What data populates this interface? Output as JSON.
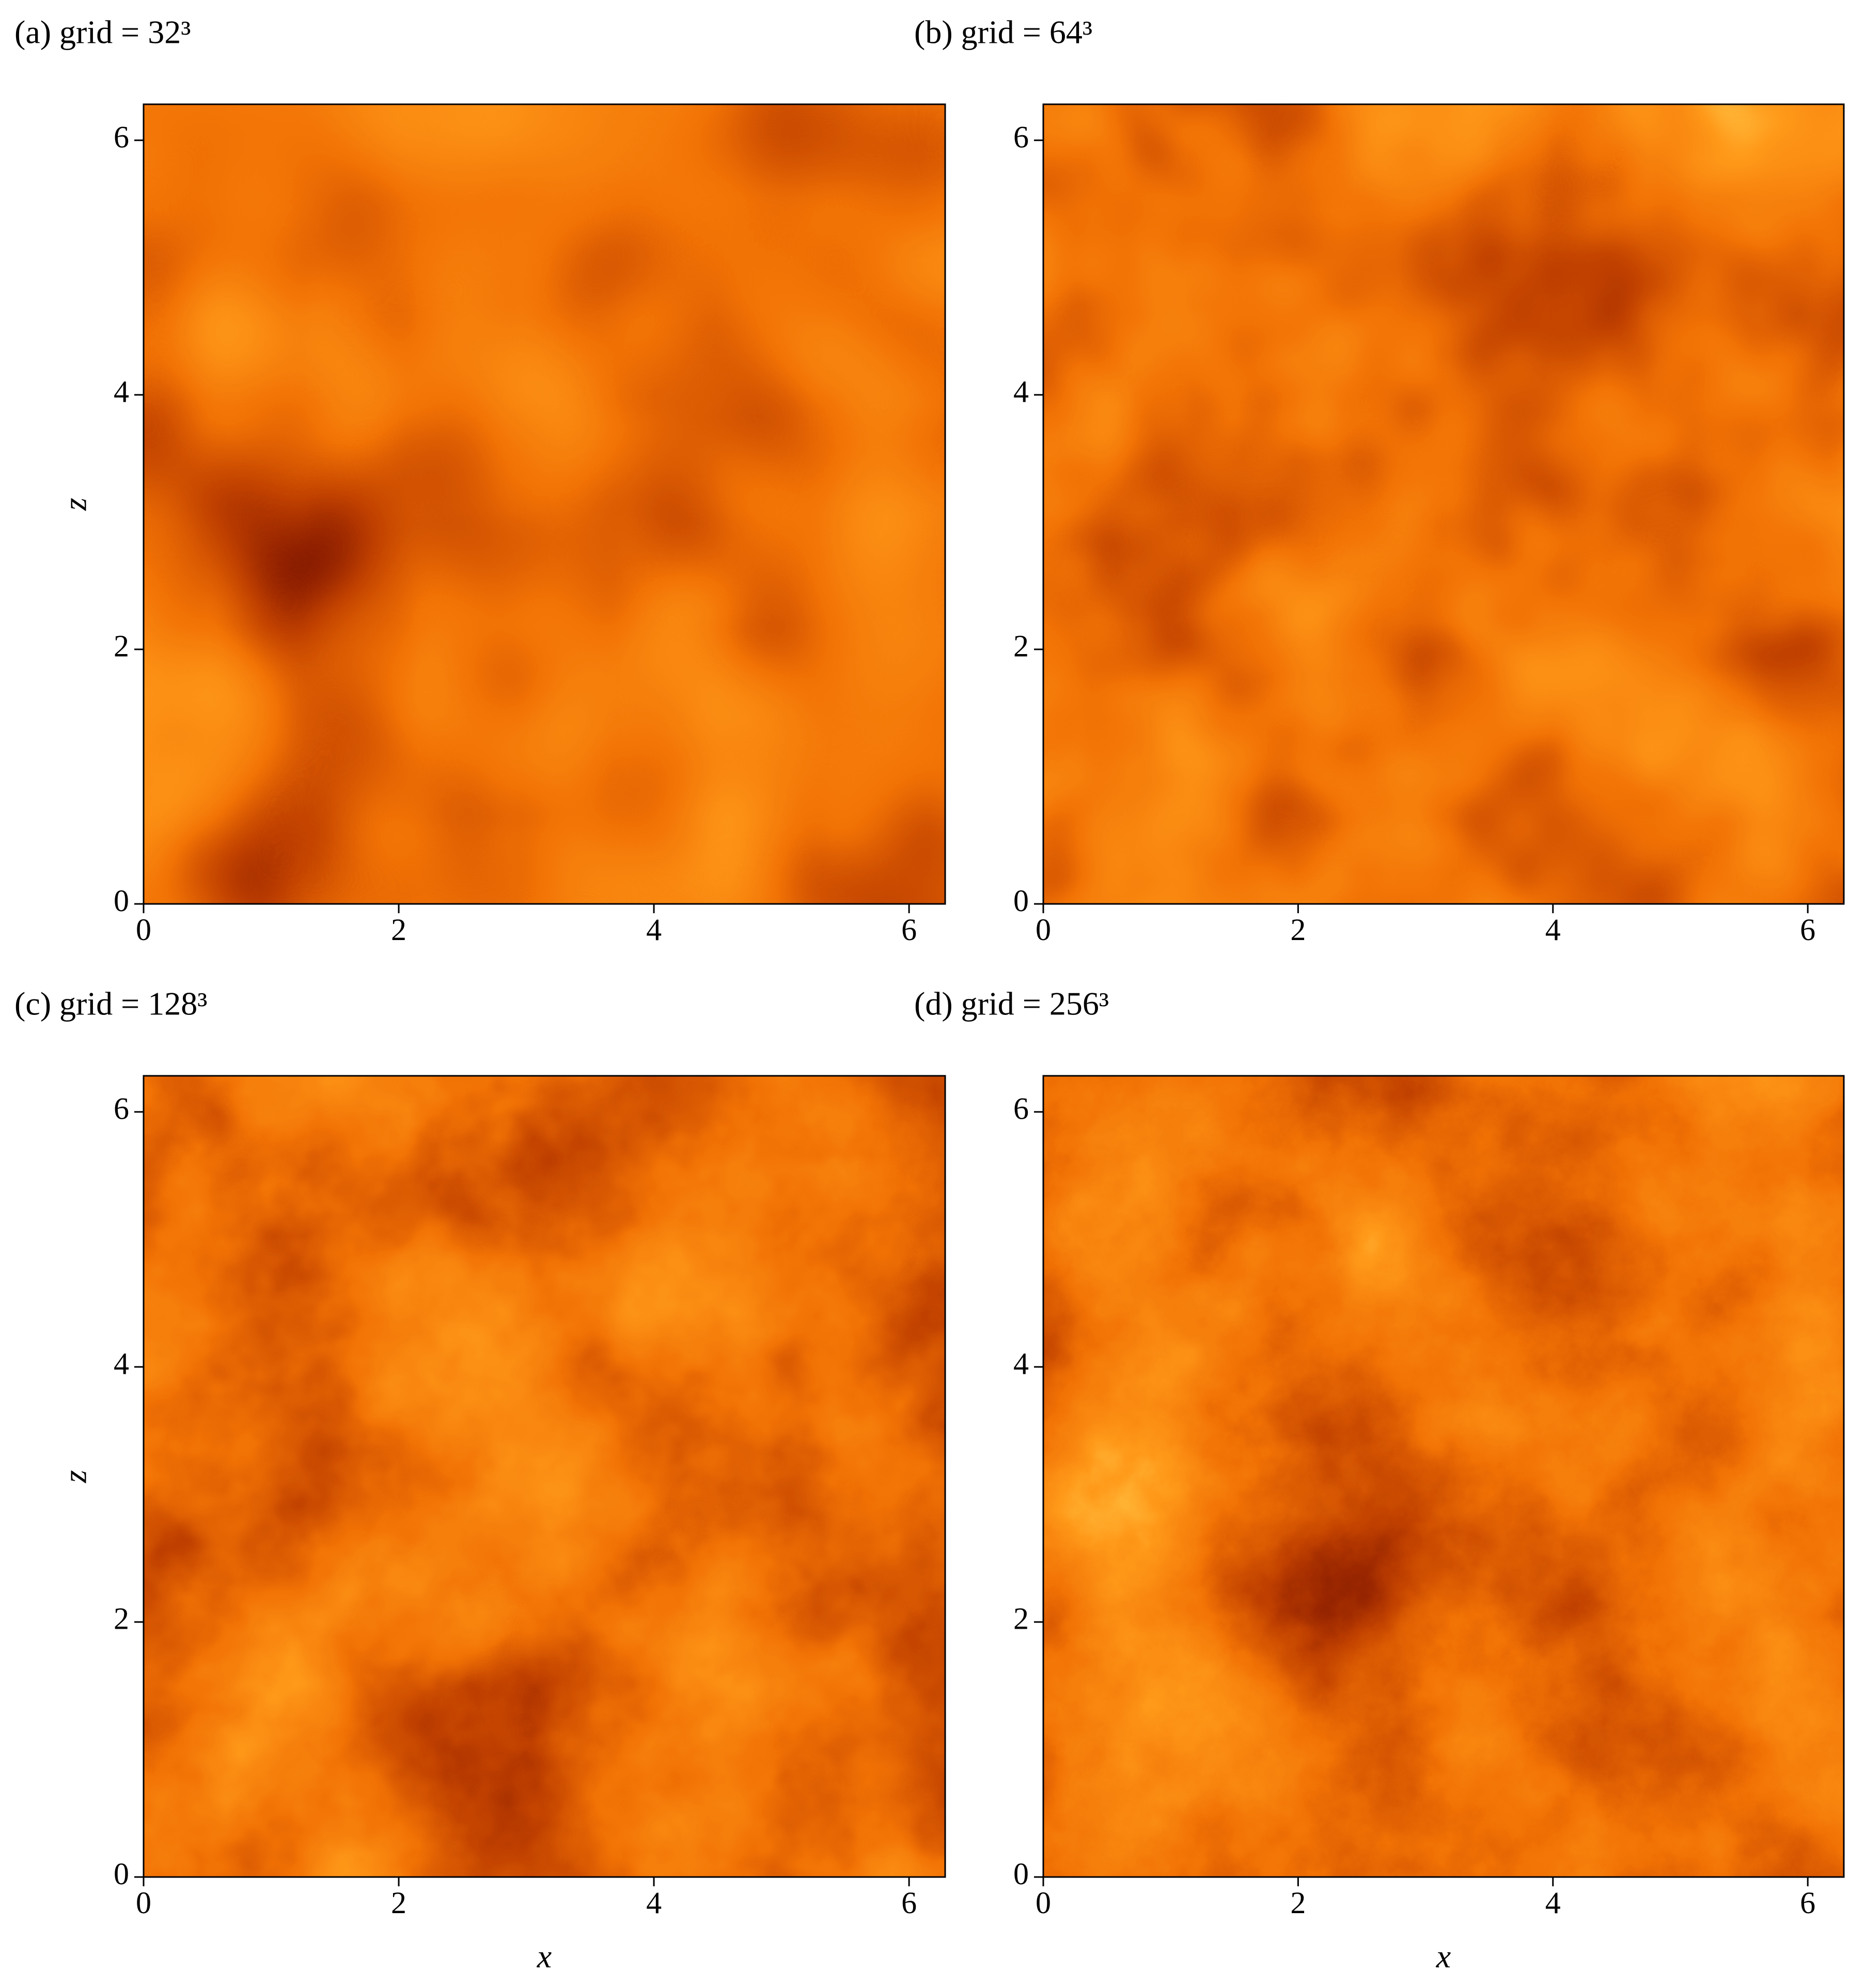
{
  "chart_data": [
    {
      "type": "heatmap",
      "title": "(a) grid = 32³",
      "y_label": "z",
      "xlim": [
        0,
        6.283
      ],
      "ylim": [
        0,
        6.283
      ],
      "xticks": [
        0,
        2,
        4,
        6
      ],
      "yticks": [
        0,
        2,
        4,
        6
      ],
      "colormap": "afmhot"
    },
    {
      "type": "heatmap",
      "title": "(b) grid = 64³",
      "xlim": [
        0,
        6.283
      ],
      "ylim": [
        0,
        6.283
      ],
      "xticks": [
        0,
        2,
        4,
        6
      ],
      "yticks": [
        0,
        2,
        4,
        6
      ],
      "colormap": "afmhot"
    },
    {
      "type": "heatmap",
      "title": "(c) grid = 128³",
      "x_label": "x",
      "y_label": "z",
      "xlim": [
        0,
        6.283
      ],
      "ylim": [
        0,
        6.283
      ],
      "xticks": [
        0,
        2,
        4,
        6
      ],
      "yticks": [
        0,
        2,
        4,
        6
      ],
      "colormap": "afmhot"
    },
    {
      "type": "heatmap",
      "title": "(d) grid = 256³",
      "x_label": "x",
      "xlim": [
        0,
        6.283
      ],
      "ylim": [
        0,
        6.283
      ],
      "xticks": [
        0,
        2,
        4,
        6
      ],
      "yticks": [
        0,
        2,
        4,
        6
      ],
      "colormap": "afmhot"
    }
  ]
}
